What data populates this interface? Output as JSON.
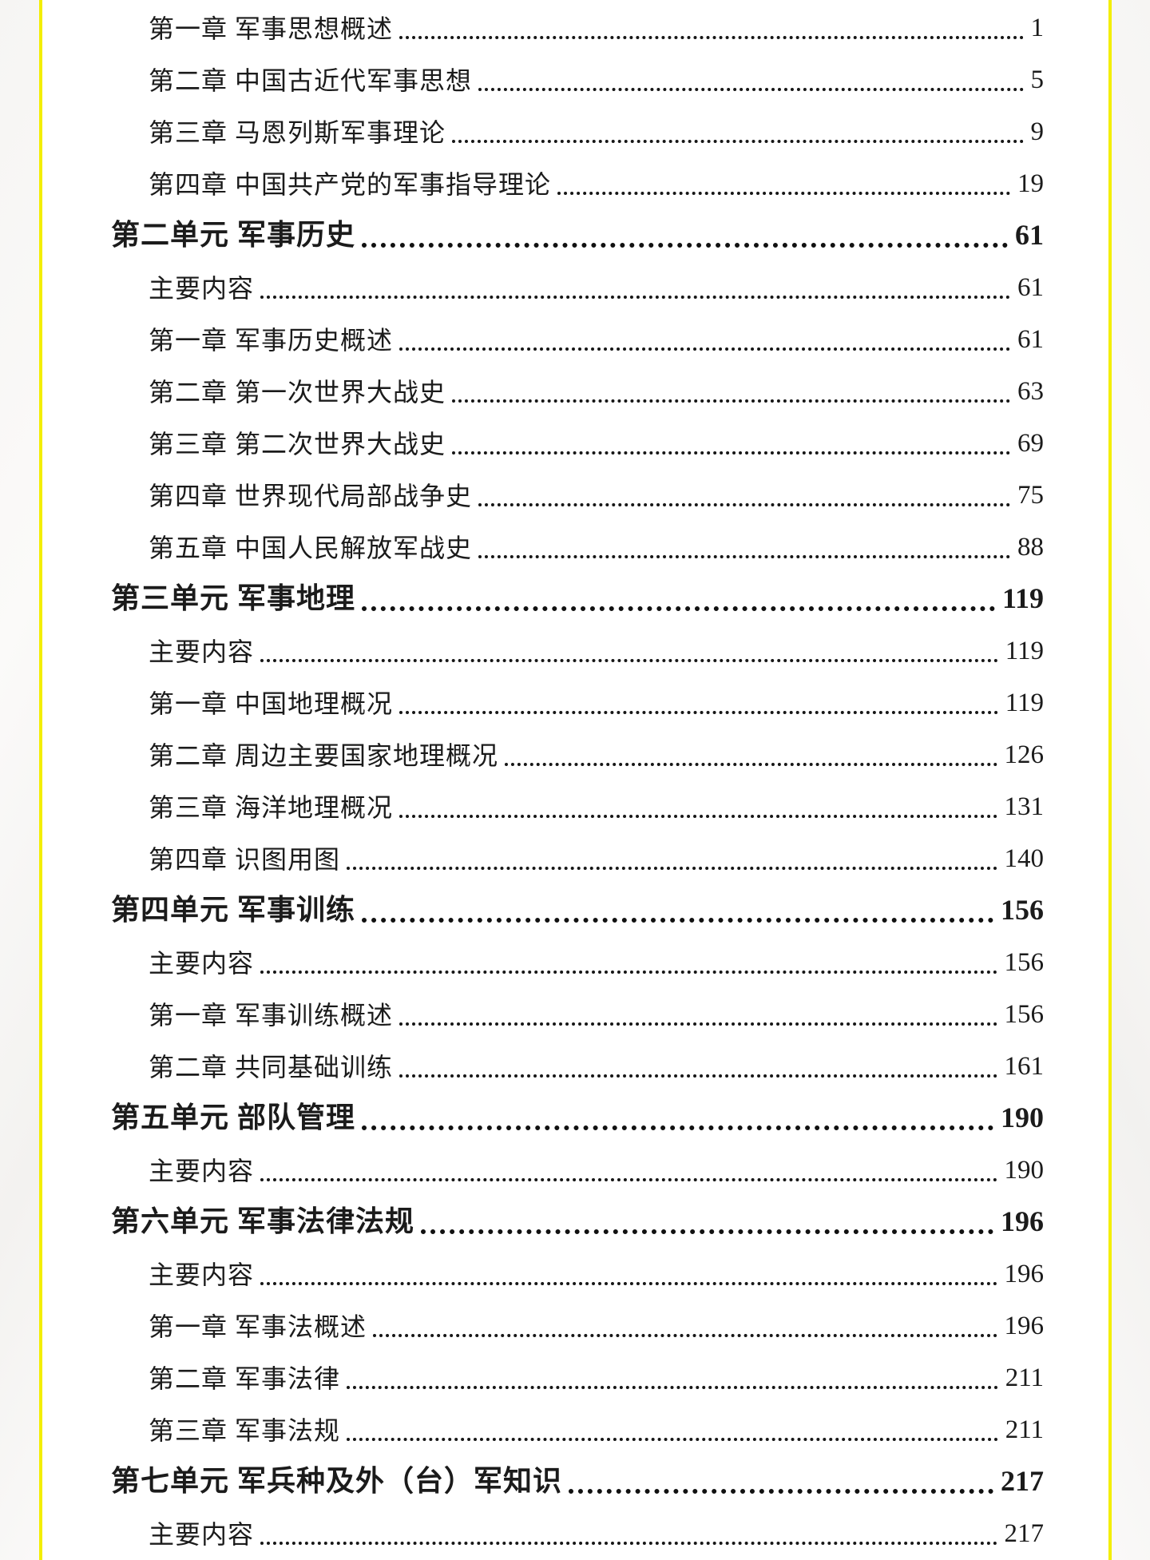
{
  "colors": {
    "accent_yellow": "#f3ee00",
    "page_background": "#ffffff",
    "margin_background": "#f6f5f3",
    "text": "#1b1b1b"
  },
  "toc": {
    "entries": [
      {
        "label": "第一章 军事思想概述",
        "page": "1",
        "level": "chapter",
        "bold": false
      },
      {
        "label": "第二章 中国古近代军事思想",
        "page": "5",
        "level": "chapter",
        "bold": false
      },
      {
        "label": "第三章 马恩列斯军事理论",
        "page": "9",
        "level": "chapter",
        "bold": false
      },
      {
        "label": "第四章 中国共产党的军事指导理论",
        "page": "19",
        "level": "chapter",
        "bold": false
      },
      {
        "label": "第二单元 军事历史",
        "page": "61",
        "level": "unit",
        "bold": true
      },
      {
        "label": "主要内容",
        "page": "61",
        "level": "section",
        "bold": false
      },
      {
        "label": "第一章 军事历史概述",
        "page": "61",
        "level": "chapter",
        "bold": false
      },
      {
        "label": "第二章 第一次世界大战史",
        "page": "63",
        "level": "chapter",
        "bold": false
      },
      {
        "label": "第三章 第二次世界大战史",
        "page": "69",
        "level": "chapter",
        "bold": false
      },
      {
        "label": "第四章 世界现代局部战争史",
        "page": "75",
        "level": "chapter",
        "bold": false
      },
      {
        "label": "第五章 中国人民解放军战史",
        "page": "88",
        "level": "chapter",
        "bold": false
      },
      {
        "label": "第三单元 军事地理",
        "page": "119",
        "level": "unit",
        "bold": true
      },
      {
        "label": "主要内容",
        "page": "119",
        "level": "section",
        "bold": false
      },
      {
        "label": "第一章 中国地理概况",
        "page": "119",
        "level": "chapter",
        "bold": false
      },
      {
        "label": "第二章 周边主要国家地理概况",
        "page": "126",
        "level": "chapter",
        "bold": false
      },
      {
        "label": "第三章 海洋地理概况",
        "page": "131",
        "level": "chapter",
        "bold": false
      },
      {
        "label": "第四章 识图用图",
        "page": "140",
        "level": "chapter",
        "bold": false
      },
      {
        "label": "第四单元 军事训练",
        "page": "156",
        "level": "unit",
        "bold": true
      },
      {
        "label": "主要内容",
        "page": "156",
        "level": "section",
        "bold": false
      },
      {
        "label": "第一章 军事训练概述",
        "page": "156",
        "level": "chapter",
        "bold": false
      },
      {
        "label": "第二章 共同基础训练",
        "page": "161",
        "level": "chapter",
        "bold": false
      },
      {
        "label": "第五单元 部队管理",
        "page": "190",
        "level": "unit",
        "bold": true
      },
      {
        "label": "主要内容",
        "page": "190",
        "level": "section",
        "bold": false
      },
      {
        "label": "第六单元 军事法律法规",
        "page": "196",
        "level": "unit",
        "bold": true
      },
      {
        "label": "主要内容",
        "page": "196",
        "level": "section",
        "bold": false
      },
      {
        "label": "第一章 军事法概述",
        "page": "196",
        "level": "chapter",
        "bold": false
      },
      {
        "label": "第二章 军事法律",
        "page": "211",
        "level": "chapter",
        "bold": false
      },
      {
        "label": "第三章 军事法规",
        "page": "211",
        "level": "chapter",
        "bold": false
      },
      {
        "label": "第七单元 军兵种及外（台）军知识",
        "page": "217",
        "level": "unit",
        "bold": true
      },
      {
        "label": "主要内容",
        "page": "217",
        "level": "section",
        "bold": false
      }
    ]
  }
}
